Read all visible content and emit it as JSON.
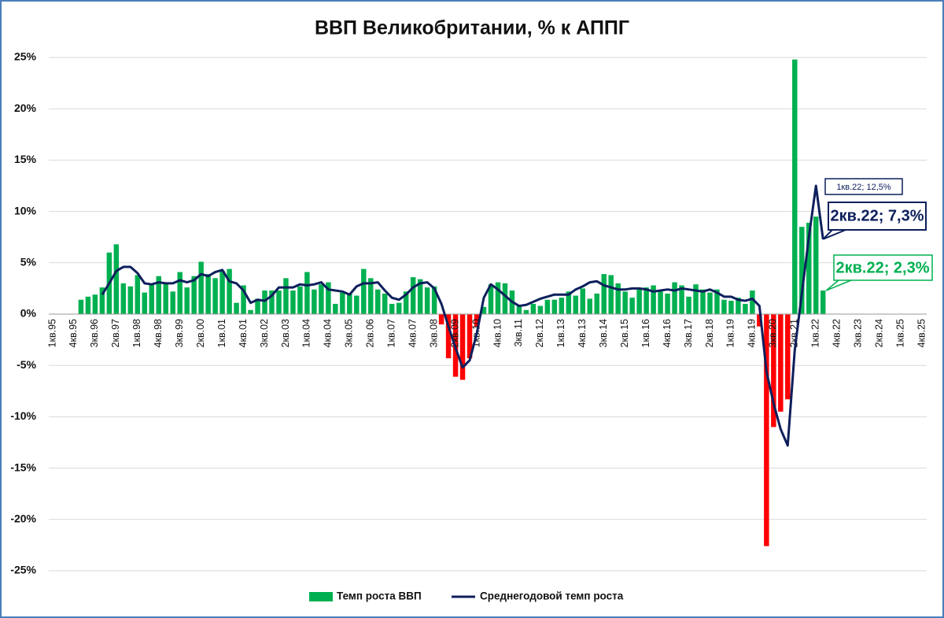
{
  "chart_data": {
    "type": "bar_line",
    "title": "ВВП Великобритании, % к АППГ",
    "categories": [
      "1кв.95",
      null,
      null,
      "4кв.95",
      null,
      null,
      "3кв.96",
      null,
      null,
      "2кв.97",
      null,
      null,
      "1кв.98",
      null,
      null,
      "4кв.98",
      null,
      null,
      "3кв.99",
      null,
      null,
      "2кв.00",
      null,
      null,
      "1кв.01",
      null,
      null,
      "4кв.01",
      null,
      null,
      "3кв.02",
      null,
      null,
      "2кв.03",
      null,
      null,
      "1кв.04",
      null,
      null,
      "4кв.04",
      null,
      null,
      "3кв.05",
      null,
      null,
      "2кв.06",
      null,
      null,
      "1кв.07",
      null,
      null,
      "4кв.07",
      null,
      null,
      "3кв.08",
      null,
      null,
      "2кв.09",
      null,
      null,
      "1кв.10",
      null,
      null,
      "4кв.10",
      null,
      null,
      "3кв.11",
      null,
      null,
      "2кв.12",
      null,
      null,
      "1кв.13",
      null,
      null,
      "4кв.13",
      null,
      null,
      "3кв.14",
      null,
      null,
      "2кв.15",
      null,
      null,
      "1кв.16",
      null,
      null,
      "4кв.16",
      null,
      null,
      "3кв.17",
      null,
      null,
      "2кв.18",
      null,
      null,
      "1кв.19",
      null,
      null,
      "4кв.19",
      null,
      null,
      "3кв.20",
      null,
      null,
      "2кв.21",
      null,
      null,
      "1кв.22",
      null,
      null,
      "4кв.22",
      null,
      null,
      "3кв.23",
      null,
      null,
      "2кв.24",
      null,
      null,
      "1кв.25",
      null,
      null,
      "4кв.25"
    ],
    "series": [
      {
        "name": "Темп роста ВВП",
        "kind": "bar",
        "color": "#00b050",
        "negative_color": "#ff0000",
        "values": [
          null,
          null,
          null,
          null,
          1.4,
          1.7,
          1.9,
          2.6,
          6.0,
          6.8,
          3.0,
          2.7,
          3.8,
          2.1,
          2.9,
          3.7,
          3.1,
          2.2,
          4.1,
          2.6,
          3.7,
          5.1,
          3.9,
          3.5,
          4.2,
          4.4,
          1.1,
          2.8,
          0.4,
          1.5,
          2.3,
          2.3,
          2.3,
          3.5,
          2.3,
          2.7,
          4.1,
          2.4,
          2.9,
          3.1,
          1.0,
          2.1,
          2.0,
          1.8,
          4.4,
          3.5,
          2.4,
          2.0,
          1.0,
          1.1,
          2.2,
          3.6,
          3.4,
          2.6,
          2.7,
          -1.0,
          -4.3,
          -6.1,
          -6.4,
          -4.3,
          -1.2,
          0.7,
          2.9,
          3.1,
          3.0,
          2.3,
          0.9,
          0.4,
          1.0,
          0.8,
          1.4,
          1.4,
          1.6,
          2.2,
          1.8,
          2.5,
          1.5,
          2.0,
          3.9,
          3.8,
          3.0,
          2.2,
          1.6,
          2.4,
          2.6,
          2.8,
          2.2,
          2.0,
          3.1,
          2.8,
          1.7,
          2.9,
          2.4,
          2.1,
          2.4,
          1.4,
          1.3,
          1.6,
          1.0,
          2.3,
          -1.2,
          -22.6,
          -11.0,
          -9.5,
          -8.3,
          24.8,
          8.5,
          8.9,
          9.5,
          2.3,
          null,
          null,
          null,
          null,
          null,
          null,
          null,
          null,
          null,
          null,
          null,
          null,
          null,
          null
        ]
      },
      {
        "name": "Среднегодовой темп роста",
        "kind": "line",
        "color": "#0d1f5c",
        "values": [
          null,
          null,
          null,
          null,
          null,
          null,
          null,
          1.9,
          3.0,
          4.2,
          4.6,
          4.6,
          4.0,
          3.0,
          2.9,
          3.1,
          3.0,
          3.0,
          3.3,
          3.1,
          3.3,
          3.9,
          3.7,
          4.1,
          4.3,
          3.2,
          3.0,
          2.3,
          1.1,
          1.4,
          1.3,
          1.8,
          2.6,
          2.6,
          2.6,
          2.9,
          2.8,
          2.9,
          3.1,
          2.4,
          2.3,
          2.2,
          1.9,
          2.7,
          3.0,
          3.0,
          3.1,
          2.3,
          1.6,
          1.4,
          1.9,
          2.6,
          3.0,
          3.1,
          2.5,
          1.0,
          -1.2,
          -3.3,
          -5.2,
          -4.5,
          -1.9,
          1.6,
          2.9,
          2.4,
          1.8,
          1.2,
          0.8,
          0.9,
          1.2,
          1.5,
          1.7,
          1.9,
          1.9,
          1.9,
          2.4,
          2.7,
          3.1,
          3.2,
          2.8,
          2.6,
          2.4,
          2.4,
          2.5,
          2.5,
          2.4,
          2.2,
          2.3,
          2.4,
          2.3,
          2.5,
          2.4,
          2.3,
          2.2,
          2.4,
          2.1,
          1.7,
          1.7,
          1.4,
          1.3,
          1.5,
          0.8,
          -5.6,
          -8.7,
          -11.2,
          -12.8,
          -3.5,
          2.0,
          7.5,
          12.5,
          7.3,
          null,
          null,
          null,
          null,
          null,
          null,
          null,
          null,
          null,
          null,
          null,
          null,
          null,
          null
        ]
      }
    ],
    "annotations": [
      {
        "text": "1кв.22; 12,5%"
      },
      {
        "text": "2кв.22; 7,3%"
      },
      {
        "text": "2кв.22; 2,3%"
      }
    ],
    "ylim": [
      -25,
      25
    ],
    "yticks": [
      {
        "value": -25,
        "label": "-25%"
      },
      {
        "value": -20,
        "label": "-20%"
      },
      {
        "value": -15,
        "label": "-15%"
      },
      {
        "value": -10,
        "label": "-10%"
      },
      {
        "value": -5,
        "label": "-5%"
      },
      {
        "value": 0,
        "label": "0%"
      },
      {
        "value": 5,
        "label": "5%"
      },
      {
        "value": 10,
        "label": "10%"
      },
      {
        "value": 15,
        "label": "15%"
      },
      {
        "value": 20,
        "label": "20%"
      },
      {
        "value": 25,
        "label": "25%"
      }
    ],
    "grid": true,
    "legend": "bottom"
  }
}
